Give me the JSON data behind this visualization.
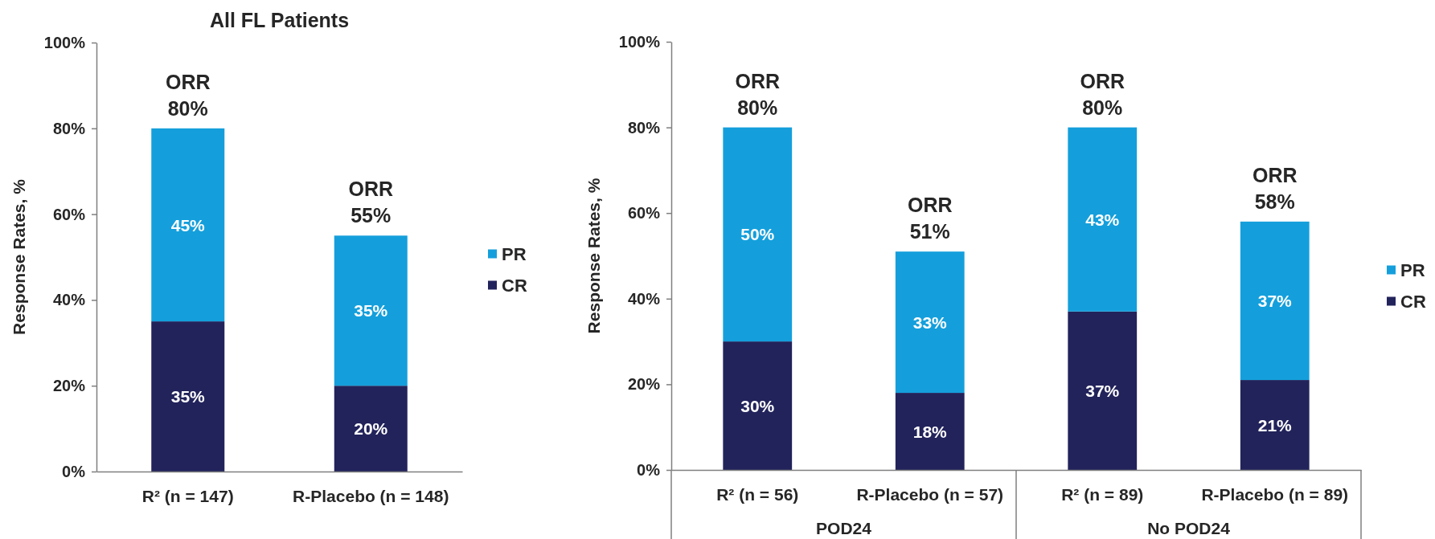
{
  "chart_data": [
    {
      "type": "bar",
      "title": "All FL Patients",
      "ylabel": "Response Rates, %",
      "categories": [
        "R² (n = 147)",
        "R-Placebo (n = 148)"
      ],
      "stacked": true,
      "series": [
        {
          "name": "CR",
          "color": "#22235b",
          "values": [
            35,
            20
          ],
          "value_labels": [
            "35%",
            "20%"
          ]
        },
        {
          "name": "PR",
          "color": "#149fdc",
          "values": [
            45,
            35
          ],
          "value_labels": [
            "45%",
            "35%"
          ]
        }
      ],
      "totals": [
        "ORR\n80%",
        "ORR\n55%"
      ],
      "ylim": [
        0,
        100
      ],
      "yticks": [
        {
          "value": 0,
          "label": "0%"
        },
        {
          "value": 20,
          "label": "20%"
        },
        {
          "value": 40,
          "label": "40%"
        },
        {
          "value": 60,
          "label": "60%"
        },
        {
          "value": 80,
          "label": "80%"
        },
        {
          "value": 100,
          "label": "100%"
        }
      ],
      "legend": "right"
    },
    {
      "type": "bar",
      "ylabel": "Response Rates, %",
      "categories": [
        "R² (n = 56)",
        "R-Placebo (n = 57)",
        "R² (n = 89)",
        "R-Placebo (n = 89)"
      ],
      "stacked": true,
      "series": [
        {
          "name": "CR",
          "color": "#22235b",
          "values": [
            30,
            18,
            37,
            21
          ],
          "value_labels": [
            "30%",
            "18%",
            "37%",
            "21%"
          ]
        },
        {
          "name": "PR",
          "color": "#149fdc",
          "values": [
            50,
            33,
            43,
            37
          ],
          "value_labels": [
            "50%",
            "33%",
            "43%",
            "37%"
          ]
        }
      ],
      "totals": [
        "ORR\n80%",
        "ORR\n51%",
        "ORR\n80%",
        "ORR\n58%"
      ],
      "annotations": [
        "POD24",
        "No POD24"
      ],
      "ylim": [
        0,
        100
      ],
      "yticks": [
        {
          "value": 0,
          "label": "0%"
        },
        {
          "value": 20,
          "label": "20%"
        },
        {
          "value": 40,
          "label": "40%"
        },
        {
          "value": 60,
          "label": "60%"
        },
        {
          "value": 80,
          "label": "80%"
        },
        {
          "value": 100,
          "label": "100%"
        }
      ],
      "legend": "right"
    }
  ]
}
